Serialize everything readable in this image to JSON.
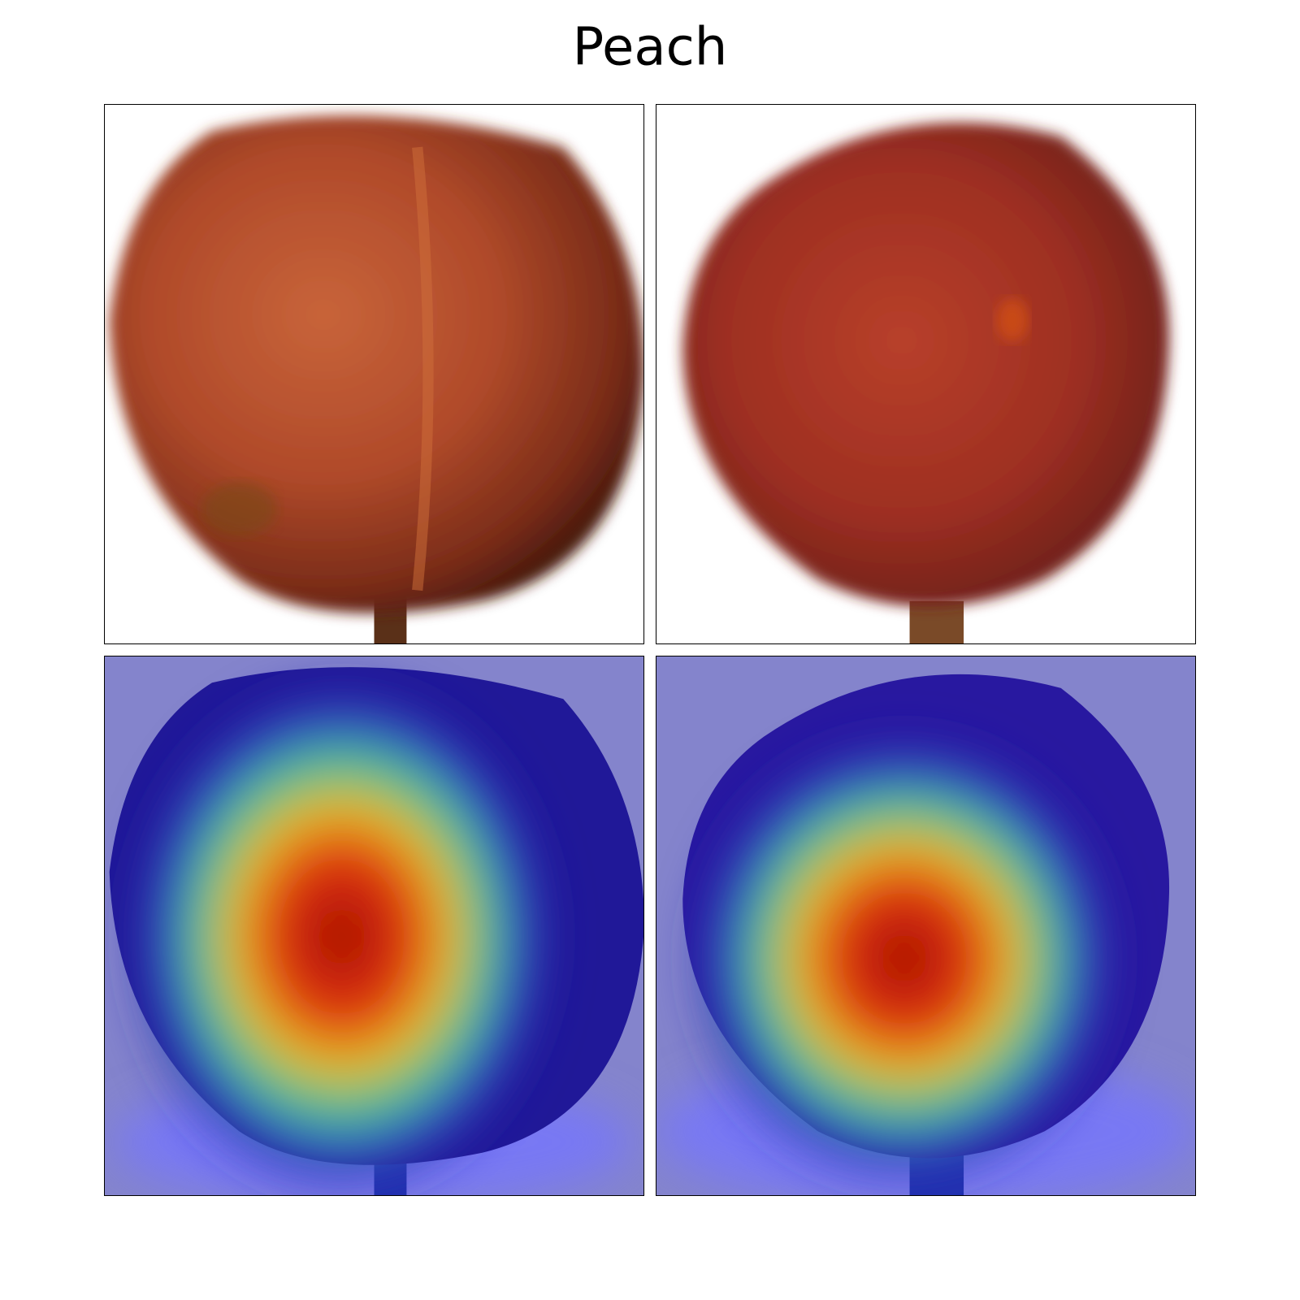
{
  "title": "Peach"
}
